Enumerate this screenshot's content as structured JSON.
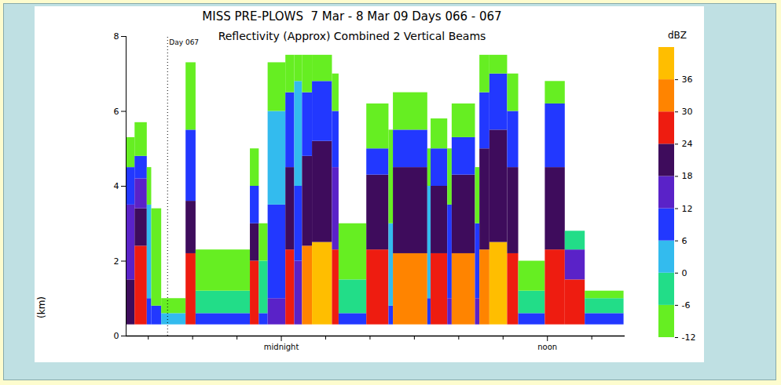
{
  "chart_data": {
    "type": "heatmap",
    "title": "MISS PRE-PLOWS  7 Mar - 8 Mar 09 Days 066 - 067",
    "subtitle": "Reflectivity (Approx) Combined 2 Vertical Beams",
    "ylabel": "(km)",
    "xlim": [
      -7,
      15.5
    ],
    "xticks": [
      {
        "value": 0,
        "label": "midnight"
      },
      {
        "value": 12,
        "label": "noon"
      }
    ],
    "xminorticks": [
      -6,
      -4,
      -2,
      2,
      4,
      6,
      8,
      10,
      14
    ],
    "ylim": [
      0,
      8
    ],
    "yticks": [
      0,
      2,
      4,
      6,
      8
    ],
    "annotations": [
      {
        "x": -5.13,
        "label": "Day 067"
      }
    ],
    "colorbar": {
      "label": "dBZ",
      "range": [
        -12,
        42
      ],
      "ticks": [
        -12,
        -6,
        0,
        6,
        12,
        18,
        24,
        30,
        36
      ],
      "colors": [
        "#66ee22",
        "#22dd88",
        "#33bbee",
        "#2238ff",
        "#5a22c8",
        "#3e0c5c",
        "#ee1c10",
        "#ff8400",
        "#ffbe00"
      ]
    },
    "cells": [
      {
        "x0": -7.0,
        "x1": -6.6,
        "layers": [
          [
            0.3,
            1.5,
            21
          ],
          [
            1.5,
            3.5,
            15
          ],
          [
            3.5,
            4.5,
            9
          ],
          [
            4.5,
            5.3,
            -9
          ]
        ]
      },
      {
        "x0": -6.6,
        "x1": -6.05,
        "layers": [
          [
            0.3,
            2.4,
            27
          ],
          [
            2.4,
            3.4,
            21
          ],
          [
            3.4,
            4.2,
            15
          ],
          [
            4.2,
            4.8,
            9
          ],
          [
            4.8,
            5.7,
            -9
          ]
        ]
      },
      {
        "x0": -6.05,
        "x1": -5.85,
        "layers": [
          [
            0.3,
            1.0,
            9
          ],
          [
            1.0,
            3.5,
            3
          ],
          [
            3.5,
            4.5,
            -9
          ]
        ]
      },
      {
        "x0": -5.85,
        "x1": -5.4,
        "layers": [
          [
            0.3,
            0.8,
            9
          ],
          [
            0.8,
            3.4,
            -9
          ]
        ]
      },
      {
        "x0": -5.4,
        "x1": -4.3,
        "layers": [
          [
            0.3,
            0.6,
            3
          ],
          [
            0.6,
            1.0,
            -9
          ]
        ]
      },
      {
        "x0": -4.3,
        "x1": -3.85,
        "layers": [
          [
            0.3,
            2.2,
            27
          ],
          [
            2.2,
            3.6,
            21
          ],
          [
            3.6,
            5.5,
            9
          ],
          [
            5.5,
            7.3,
            -9
          ]
        ]
      },
      {
        "x0": -3.85,
        "x1": -1.4,
        "layers": [
          [
            0.3,
            0.6,
            9
          ],
          [
            0.6,
            1.2,
            -3
          ],
          [
            1.2,
            2.3,
            -9
          ]
        ]
      },
      {
        "x0": -1.4,
        "x1": -1.0,
        "layers": [
          [
            0.3,
            2.0,
            27
          ],
          [
            2.0,
            3.0,
            21
          ],
          [
            3.0,
            4.0,
            9
          ],
          [
            4.0,
            5.0,
            -9
          ]
        ]
      },
      {
        "x0": -1.0,
        "x1": -0.6,
        "layers": [
          [
            0.3,
            0.6,
            9
          ],
          [
            0.6,
            2.0,
            -3
          ],
          [
            2.0,
            3.0,
            -9
          ]
        ]
      },
      {
        "x0": -0.6,
        "x1": 0.2,
        "layers": [
          [
            0.3,
            1.0,
            15
          ],
          [
            1.0,
            3.5,
            9
          ],
          [
            3.5,
            6.0,
            3
          ],
          [
            6.0,
            7.3,
            -9
          ]
        ]
      },
      {
        "x0": 0.2,
        "x1": 0.6,
        "layers": [
          [
            0.3,
            2.3,
            27
          ],
          [
            2.3,
            4.5,
            21
          ],
          [
            4.5,
            6.5,
            9
          ],
          [
            6.5,
            7.5,
            -9
          ]
        ]
      },
      {
        "x0": 0.6,
        "x1": 0.95,
        "layers": [
          [
            0.3,
            2.0,
            15
          ],
          [
            2.0,
            4.0,
            9
          ],
          [
            4.0,
            6.8,
            3
          ],
          [
            6.8,
            7.5,
            -9
          ]
        ]
      },
      {
        "x0": 0.95,
        "x1": 1.4,
        "layers": [
          [
            0.3,
            2.4,
            33
          ],
          [
            2.4,
            4.8,
            21
          ],
          [
            4.8,
            6.5,
            9
          ],
          [
            6.5,
            7.5,
            -9
          ]
        ]
      },
      {
        "x0": 1.4,
        "x1": 2.3,
        "layers": [
          [
            0.3,
            2.5,
            39
          ],
          [
            2.5,
            5.2,
            21
          ],
          [
            5.2,
            6.8,
            9
          ],
          [
            6.8,
            7.5,
            -9
          ]
        ]
      },
      {
        "x0": 2.3,
        "x1": 2.6,
        "layers": [
          [
            0.3,
            2.3,
            27
          ],
          [
            2.3,
            4.5,
            15
          ],
          [
            4.5,
            6.0,
            9
          ],
          [
            6.0,
            7.0,
            -9
          ]
        ]
      },
      {
        "x0": 2.6,
        "x1": 3.85,
        "layers": [
          [
            0.3,
            0.6,
            9
          ],
          [
            0.6,
            1.5,
            -3
          ],
          [
            1.5,
            3.0,
            -9
          ]
        ]
      },
      {
        "x0": 3.85,
        "x1": 4.85,
        "layers": [
          [
            0.3,
            2.3,
            27
          ],
          [
            2.3,
            4.3,
            21
          ],
          [
            4.3,
            5.0,
            9
          ],
          [
            5.0,
            6.2,
            -9
          ]
        ]
      },
      {
        "x0": 4.85,
        "x1": 5.05,
        "layers": [
          [
            0.3,
            0.8,
            9
          ],
          [
            0.8,
            3.0,
            3
          ],
          [
            3.0,
            5.5,
            -9
          ]
        ]
      },
      {
        "x0": 5.05,
        "x1": 6.6,
        "layers": [
          [
            0.3,
            2.2,
            33
          ],
          [
            2.2,
            4.5,
            21
          ],
          [
            4.5,
            5.5,
            9
          ],
          [
            5.5,
            6.5,
            -9
          ]
        ]
      },
      {
        "x0": 6.6,
        "x1": 6.75,
        "layers": [
          [
            0.3,
            1.0,
            9
          ],
          [
            1.0,
            4.0,
            3
          ],
          [
            4.0,
            5.0,
            -9
          ]
        ]
      },
      {
        "x0": 6.75,
        "x1": 7.5,
        "layers": [
          [
            0.3,
            2.2,
            27
          ],
          [
            2.2,
            4.0,
            21
          ],
          [
            4.0,
            5.0,
            9
          ],
          [
            5.0,
            5.8,
            -9
          ]
        ]
      },
      {
        "x0": 7.5,
        "x1": 7.7,
        "layers": [
          [
            0.3,
            1.0,
            15
          ],
          [
            1.0,
            3.5,
            9
          ],
          [
            3.5,
            5.0,
            -9
          ]
        ]
      },
      {
        "x0": 7.7,
        "x1": 8.75,
        "layers": [
          [
            0.3,
            2.2,
            33
          ],
          [
            2.2,
            4.3,
            21
          ],
          [
            4.3,
            5.3,
            9
          ],
          [
            5.3,
            6.2,
            -9
          ]
        ]
      },
      {
        "x0": 8.75,
        "x1": 8.95,
        "layers": [
          [
            0.3,
            1.0,
            15
          ],
          [
            1.0,
            3.0,
            9
          ],
          [
            3.0,
            4.5,
            -9
          ]
        ]
      },
      {
        "x0": 8.95,
        "x1": 9.4,
        "layers": [
          [
            0.3,
            2.3,
            33
          ],
          [
            2.3,
            5.0,
            21
          ],
          [
            5.0,
            6.5,
            9
          ],
          [
            6.5,
            7.5,
            -9
          ]
        ]
      },
      {
        "x0": 9.4,
        "x1": 10.2,
        "layers": [
          [
            0.3,
            2.5,
            39
          ],
          [
            2.5,
            5.5,
            21
          ],
          [
            5.5,
            7.0,
            9
          ],
          [
            7.0,
            7.5,
            -9
          ]
        ]
      },
      {
        "x0": 10.2,
        "x1": 10.7,
        "layers": [
          [
            0.3,
            2.2,
            27
          ],
          [
            2.2,
            4.5,
            21
          ],
          [
            4.5,
            6.0,
            9
          ],
          [
            6.0,
            7.0,
            -9
          ]
        ]
      },
      {
        "x0": 10.7,
        "x1": 11.9,
        "layers": [
          [
            0.3,
            0.6,
            9
          ],
          [
            0.6,
            1.2,
            -3
          ],
          [
            1.2,
            2.0,
            -9
          ]
        ]
      },
      {
        "x0": 11.9,
        "x1": 12.8,
        "layers": [
          [
            0.3,
            2.3,
            27
          ],
          [
            2.3,
            4.5,
            21
          ],
          [
            4.5,
            6.2,
            9
          ],
          [
            6.2,
            6.8,
            -9
          ]
        ]
      },
      {
        "x0": 12.8,
        "x1": 13.7,
        "layers": [
          [
            0.3,
            1.5,
            27
          ],
          [
            1.5,
            2.3,
            15
          ],
          [
            2.3,
            2.8,
            -3
          ]
        ]
      },
      {
        "x0": 13.7,
        "x1": 15.45,
        "layers": [
          [
            0.3,
            0.6,
            9
          ],
          [
            0.6,
            1.0,
            -3
          ],
          [
            1.0,
            1.2,
            -9
          ]
        ]
      }
    ]
  }
}
